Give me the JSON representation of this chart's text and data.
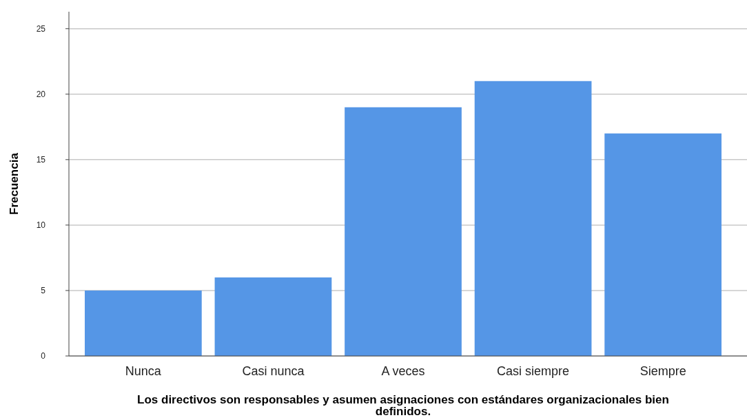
{
  "chart_data": {
    "type": "bar",
    "xlabel": "Los directivos son responsables y asumen asignaciones con estándares organizacionales bien definidos.",
    "ylabel": "Frecuencia",
    "categories": [
      "Nunca",
      "Casi nunca",
      "A veces",
      "Casi siempre",
      "Siempre"
    ],
    "values": [
      5,
      6,
      19,
      21,
      17
    ],
    "color": "#5596e6",
    "ylim": [
      0,
      26.3
    ],
    "yticks": [
      0,
      5,
      10,
      15,
      20,
      25
    ],
    "grid": "y"
  }
}
